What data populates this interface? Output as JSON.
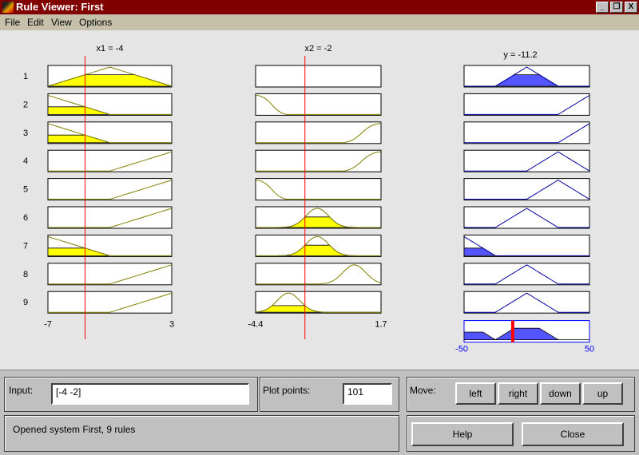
{
  "window": {
    "title": "Rule Viewer: First",
    "minimize": "_",
    "restore": "❐",
    "close": "X"
  },
  "menu": [
    "File",
    "Edit",
    "View",
    "Options"
  ],
  "colors": {
    "input_mf": "#808000",
    "input_fill": "#ffff00",
    "output_mf": "#0000a0",
    "output_fill": "#5555ff",
    "indicator": "#ff0000",
    "output_axis": "#0000ff"
  },
  "inputs": [
    {
      "label": "x1 = -4",
      "value": -4,
      "range": [
        -7,
        3
      ],
      "min_label": "-7",
      "max_label": "3",
      "mfs": [
        [
          "tri",
          -7,
          -2,
          3
        ],
        [
          "ramp_down",
          -7,
          -2
        ],
        [
          "ramp_down",
          -7,
          -2
        ],
        [
          "ramp_up",
          -2,
          3
        ],
        [
          "ramp_up",
          -2,
          3
        ],
        [
          "ramp_up",
          -2,
          3
        ],
        [
          "ramp_down",
          -7,
          -2
        ],
        [
          "ramp_up",
          -2,
          3
        ],
        [
          "ramp_up",
          -2,
          3
        ]
      ]
    },
    {
      "label": "x2 = -2",
      "value": -2,
      "range": [
        -4.4,
        1.7
      ],
      "min_label": "-4.4",
      "max_label": "1.7",
      "mfs": [
        [
          "none"
        ],
        [
          "z",
          -4.4,
          -2.8
        ],
        [
          "s",
          -0.2,
          1.7
        ],
        [
          "s",
          -0.2,
          1.7
        ],
        [
          "z",
          -4.4,
          -2.8
        ],
        [
          "gauss",
          -1.4,
          0.55
        ],
        [
          "gauss",
          -1.4,
          0.55
        ],
        [
          "gauss",
          0.4,
          0.55
        ],
        [
          "gauss",
          -2.8,
          0.55
        ]
      ]
    }
  ],
  "output": {
    "label": "y = -11.2",
    "value": -11.2,
    "range": [
      -50,
      50
    ],
    "min_label": "-50",
    "max_label": "50",
    "mfs": [
      [
        "tri",
        -25,
        0,
        25
      ],
      [
        "tri",
        25,
        50,
        75
      ],
      [
        "tri",
        25,
        50,
        75
      ],
      [
        "tri",
        0,
        25,
        50
      ],
      [
        "tri",
        0,
        25,
        50
      ],
      [
        "tri",
        -25,
        0,
        25
      ],
      [
        "tri",
        -75,
        -50,
        -25
      ],
      [
        "tri",
        -25,
        0,
        25
      ],
      [
        "tri",
        -25,
        0,
        25
      ]
    ]
  },
  "rule_numbers": [
    "1",
    "2",
    "3",
    "4",
    "5",
    "6",
    "7",
    "8",
    "9"
  ],
  "controls": {
    "input_label": "Input:",
    "input_value": "[-4 -2]",
    "plot_points_label": "Plot points:",
    "plot_points_value": "101",
    "move_label": "Move:",
    "left": "left",
    "right": "right",
    "down": "down",
    "up": "up",
    "help": "Help",
    "close": "Close"
  },
  "status": "Opened system First, 9 rules"
}
